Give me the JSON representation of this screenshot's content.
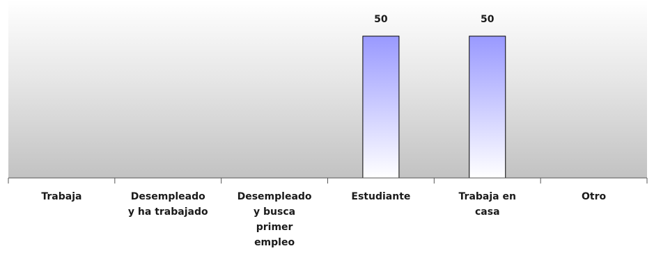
{
  "chart_data": {
    "type": "bar",
    "title": "",
    "xlabel": "",
    "ylabel": "",
    "categories": [
      "Trabaja",
      "Desempleado y ha trabajado",
      "Desempleado y busca primer empleo",
      "Estudiante",
      "Trabaja en casa",
      "Otro"
    ],
    "category_lines": [
      [
        "Trabaja"
      ],
      [
        "Desempleado",
        "y ha trabajado"
      ],
      [
        "Desempleado",
        "y busca",
        "primer",
        "empleo"
      ],
      [
        "Estudiante"
      ],
      [
        "Trabaja en",
        "casa"
      ],
      [
        "Otro"
      ]
    ],
    "values": [
      0,
      0,
      0,
      50,
      50,
      0
    ],
    "data_labels": [
      "",
      "",
      "",
      "50",
      "50",
      ""
    ],
    "ylim": [
      0,
      50
    ],
    "grid": false,
    "legend": "none",
    "colors": {
      "plot_top": "#ffffff",
      "plot_bottom": "#c2c2c2",
      "bar_top": "#9999ff",
      "bar_bottom": "#ffffff",
      "bar_stroke": "#000000",
      "axis": "#555555",
      "text": "#1a1a1a"
    }
  }
}
